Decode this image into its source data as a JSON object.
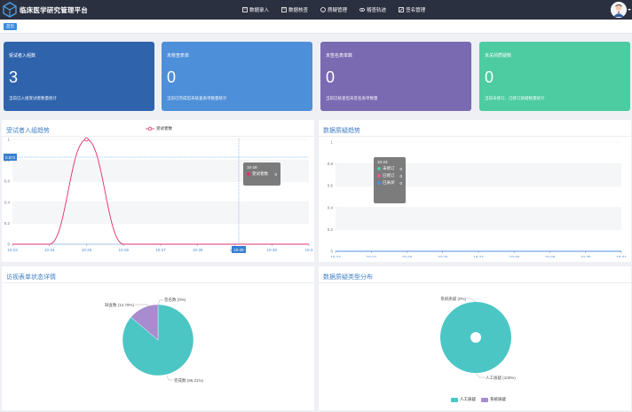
{
  "header": {
    "app_title": "临床医学研究管理平台",
    "nav": [
      {
        "label": "数据录入",
        "icon": "book-icon"
      },
      {
        "label": "数据核查",
        "icon": "book-icon"
      },
      {
        "label": "质疑管理",
        "icon": "question-circle-icon"
      },
      {
        "label": "稽查轨迹",
        "icon": "eye-icon"
      },
      {
        "label": "签名管理",
        "icon": "edit-icon"
      }
    ]
  },
  "breadcrumb": {
    "home_label": "首页"
  },
  "stats": [
    {
      "title": "受试者入组数",
      "value": "3",
      "desc": "当前已入组受试者数量统计",
      "color": "#2f64ad"
    },
    {
      "title": "未核查表单",
      "value": "0",
      "desc": "当前已完成但未核查表单数量统计",
      "color": "#4e8fd9"
    },
    {
      "title": "未签名表单数",
      "value": "0",
      "desc": "当前已核查但未签名表单数量",
      "color": "#7a6ab2"
    },
    {
      "title": "未关闭质疑数",
      "value": "0",
      "desc": "当前未修订、已修订质疑数量统计",
      "color": "#4dcba1"
    }
  ],
  "enrollment_panel": {
    "title": "受试者入组趋势",
    "legend": "受试者数",
    "crosshair_y_label": "0.873",
    "crosshair_x_label": "10-29",
    "tooltip": {
      "header": "10-29",
      "series": "受试者数",
      "value": "0"
    }
  },
  "quality_panel": {
    "title": "数据质疑趋势",
    "tooltip": {
      "header": "10-23",
      "rows": [
        {
          "label": "未修订",
          "value": "0",
          "color": "#4dcba1"
        },
        {
          "label": "已修订",
          "value": "0",
          "color": "#e85c8a"
        },
        {
          "label": "已关闭",
          "value": "0",
          "color": "#4e8fd9"
        }
      ]
    }
  },
  "visit_panel": {
    "title": "访视表单状态详情"
  },
  "type_panel": {
    "title": "数据质疑类型分布"
  },
  "chart_data": [
    {
      "type": "line",
      "title": "受试者入组趋势",
      "x": [
        "10-23",
        "10-24",
        "10-25",
        "10-26",
        "10-27",
        "10-28",
        "10-29",
        "10-30",
        "10-3"
      ],
      "series": [
        {
          "name": "受试者数",
          "values": [
            0,
            0,
            1,
            0,
            0,
            0,
            0,
            0,
            0
          ],
          "color": "#e0336d"
        }
      ],
      "yticks": [
        "0",
        "0.2",
        "0.4",
        "0.6",
        "0.8",
        "1"
      ],
      "ylim": [
        0,
        1
      ],
      "grid": true
    },
    {
      "type": "line",
      "title": "数据质疑趋势",
      "x": [
        "10-23",
        "10-24",
        "10-25",
        "10-26",
        "10-27",
        "10-28",
        "10-29",
        "10-30",
        "10-31"
      ],
      "series": [
        {
          "name": "未修订",
          "values": [
            0,
            0,
            0,
            0,
            0,
            0,
            0,
            0,
            0
          ],
          "color": "#4dcba1"
        },
        {
          "name": "已修订",
          "values": [
            0,
            0,
            0,
            0,
            0,
            0,
            0,
            0,
            0
          ],
          "color": "#e85c8a"
        },
        {
          "name": "已关闭",
          "values": [
            0,
            0,
            0,
            0,
            0,
            0,
            0,
            0,
            0
          ],
          "color": "#4e8fd9"
        }
      ],
      "yticks": [
        "0",
        "0.2",
        "0.4",
        "0.6",
        "0.8",
        "1"
      ],
      "ylim": [
        0,
        1
      ],
      "grid": true
    },
    {
      "type": "pie",
      "title": "访视表单状态详情",
      "slices": [
        {
          "label": "完成数 (86.21%)",
          "value": 86.21,
          "color": "#4cc6c4"
        },
        {
          "label": "缺查数 (13.79%)",
          "value": 13.79,
          "color": "#a98bd0"
        },
        {
          "label": "签名数 (0%)",
          "value": 0,
          "color": "#e85c8a"
        }
      ]
    },
    {
      "type": "pie",
      "title": "数据质疑类型分布",
      "slices": [
        {
          "label": "人工质疑 (100%)",
          "value": 100,
          "color": "#4cc6c4"
        },
        {
          "label": "系统质疑 (0%)",
          "value": 0,
          "color": "#a98bd0"
        }
      ],
      "legend": [
        "人工质疑",
        "系统质疑"
      ]
    }
  ]
}
